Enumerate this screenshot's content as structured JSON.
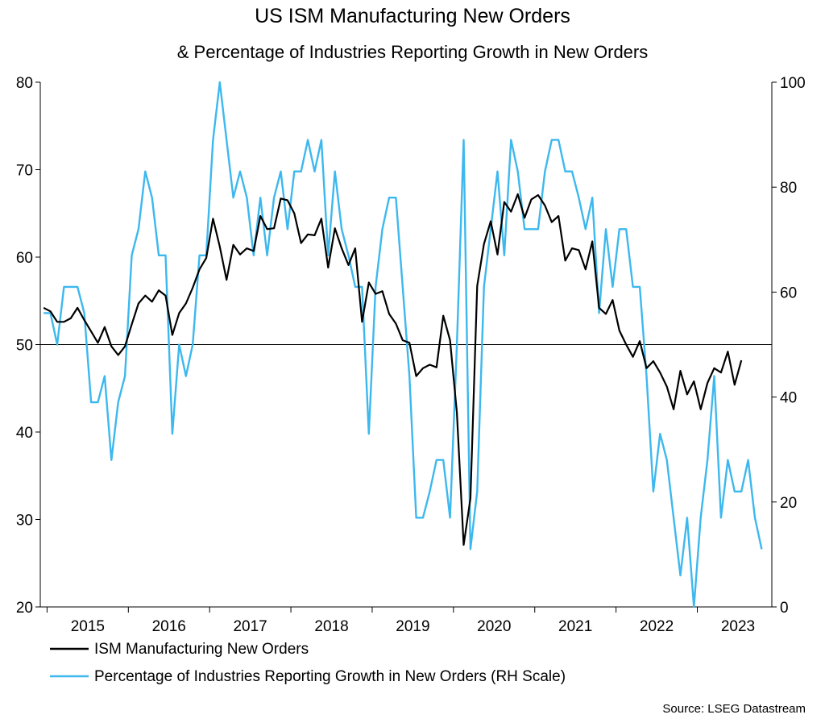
{
  "chart_data": {
    "type": "line",
    "title": "US ISM Manufacturing New Orders",
    "subtitle": "& Percentage of Industries Reporting Growth in New Orders",
    "source": "Source: LSEG Datastream",
    "x_tick_labels": [
      "2015",
      "2016",
      "2017",
      "2018",
      "2019",
      "2020",
      "2021",
      "2022",
      "2023"
    ],
    "x_range": [
      "2014-12",
      "2023-11"
    ],
    "left_axis": {
      "range": [
        20,
        80
      ],
      "ticks": [
        "20",
        "30",
        "40",
        "50",
        "60",
        "70",
        "80"
      ]
    },
    "right_axis": {
      "range": [
        0,
        100
      ],
      "ticks": [
        "0",
        "20",
        "40",
        "60",
        "80",
        "100"
      ]
    },
    "reference_line": {
      "axis": "left",
      "value": 50
    },
    "grid": false,
    "legend_position": "bottom-left",
    "colors": {
      "series1": "#000000",
      "series2": "#3db8ee"
    },
    "series": [
      {
        "name": "ISM Manufacturing New Orders",
        "axis": "left",
        "start": "2014-12",
        "values": [
          54.2,
          53.8,
          52.6,
          52.6,
          53.0,
          54.2,
          52.8,
          51.5,
          50.2,
          52.0,
          49.8,
          48.8,
          49.8,
          52.3,
          54.7,
          55.6,
          54.9,
          56.2,
          55.6,
          51.1,
          53.6,
          54.7,
          56.5,
          58.6,
          59.9,
          64.4,
          61.2,
          57.4,
          61.4,
          60.3,
          61.0,
          60.7,
          64.7,
          63.2,
          63.3,
          66.7,
          66.5,
          65.0,
          61.6,
          62.6,
          62.5,
          64.4,
          58.8,
          63.3,
          61.0,
          59.1,
          61.0,
          52.6,
          57.1,
          55.8,
          56.1,
          53.5,
          52.4,
          50.5,
          50.2,
          46.4,
          47.3,
          47.7,
          47.4,
          53.3,
          50.5,
          42.2,
          27.1,
          32.4,
          56.7,
          61.5,
          64.1,
          60.3,
          66.3,
          65.2,
          67.2,
          64.5,
          66.6,
          67.1,
          65.9,
          64.0,
          64.7,
          59.6,
          61.0,
          60.8,
          58.6,
          61.8,
          54.2,
          53.5,
          55.1,
          51.6,
          50.0,
          48.6,
          50.4,
          47.3,
          48.1,
          46.8,
          45.2,
          42.6,
          47.0,
          44.3,
          45.8,
          42.6,
          45.6,
          47.3,
          46.8,
          49.2,
          45.4,
          48.2
        ]
      },
      {
        "name": "Percentage of Industries Reporting Growth in New Orders (RH Scale)",
        "axis": "right",
        "start": "2014-12",
        "values": [
          56,
          56,
          50,
          61,
          61,
          61,
          56,
          39,
          39,
          44,
          28,
          39,
          44,
          67,
          72,
          83,
          78,
          67,
          67,
          33,
          50,
          44,
          50,
          67,
          67,
          89,
          100,
          89,
          78,
          83,
          78,
          67,
          78,
          67,
          78,
          83,
          72,
          83,
          83,
          89,
          83,
          89,
          67,
          83,
          72,
          67,
          61,
          61,
          33,
          61,
          72,
          78,
          78,
          61,
          44,
          17,
          17,
          22,
          28,
          28,
          17,
          50,
          89,
          11,
          22,
          61,
          72,
          83,
          67,
          89,
          83,
          72,
          72,
          72,
          83,
          89,
          89,
          83,
          83,
          78,
          72,
          78,
          56,
          72,
          61,
          72,
          72,
          61,
          61,
          44,
          22,
          33,
          28,
          17,
          6,
          17,
          0,
          17,
          28,
          44,
          17,
          28,
          22,
          22,
          28,
          17,
          11
        ]
      }
    ]
  }
}
